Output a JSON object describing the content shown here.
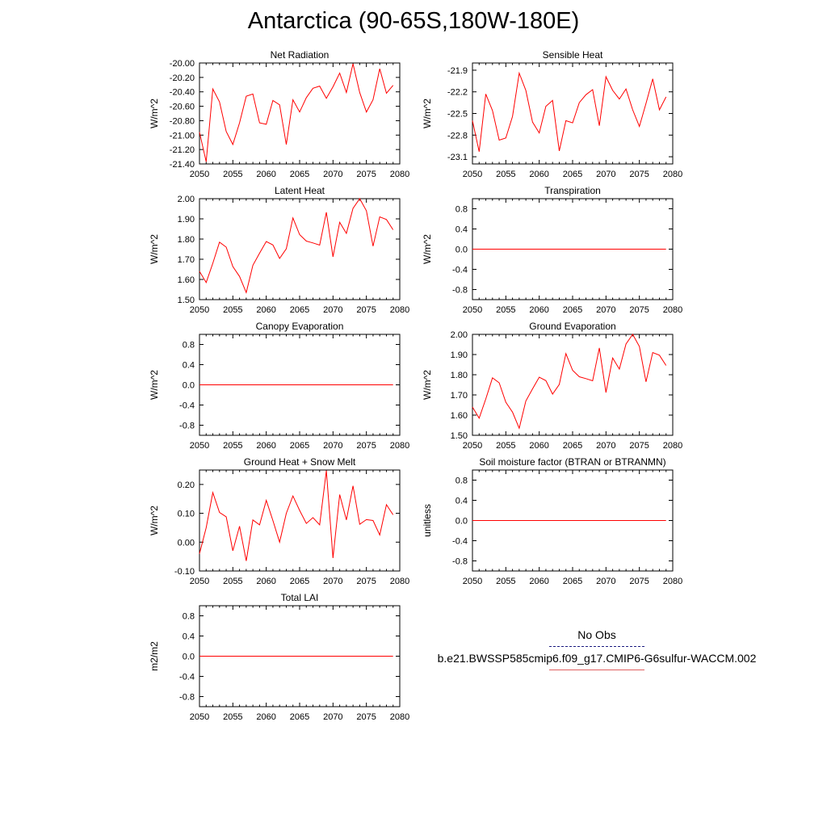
{
  "title": "Antarctica (90-65S,180W-180E)",
  "colors": {
    "model": "#ff0000",
    "obs": "#1a1a80",
    "axis": "#000000"
  },
  "legend": {
    "obs_label": "No Obs",
    "model_label": "b.e21.BWSSP585cmip6.f09_g17.CMIP6-G6sulfur-WACCM.002"
  },
  "chart_data": [
    {
      "type": "line",
      "title": "Net Radiation",
      "ylabel": "W/m^2",
      "xlim": [
        2050,
        2080
      ],
      "ylim": [
        -21.4,
        -20.0
      ],
      "xticks": [
        2050,
        2055,
        2060,
        2065,
        2070,
        2075,
        2080
      ],
      "yticks": [
        -21.4,
        -21.2,
        -21.0,
        -20.8,
        -20.6,
        -20.4,
        -20.2,
        -20.0
      ],
      "ytick_labels": [
        "-21.40",
        "-21.20",
        "-21.00",
        "-20.80",
        "-20.60",
        "-20.40",
        "-20.20",
        "-20.00"
      ],
      "x": [
        2050,
        2051,
        2052,
        2053,
        2054,
        2055,
        2056,
        2057,
        2058,
        2059,
        2060,
        2061,
        2062,
        2063,
        2064,
        2065,
        2066,
        2067,
        2068,
        2069,
        2070,
        2071,
        2072,
        2073,
        2074,
        2075,
        2076,
        2077,
        2078,
        2079
      ],
      "values": [
        -20.96,
        -21.37,
        -20.36,
        -20.54,
        -20.95,
        -21.13,
        -20.83,
        -20.46,
        -20.43,
        -20.83,
        -20.85,
        -20.52,
        -20.58,
        -21.13,
        -20.51,
        -20.68,
        -20.48,
        -20.35,
        -20.32,
        -20.49,
        -20.33,
        -20.14,
        -20.41,
        -20.01,
        -20.41,
        -20.68,
        -20.51,
        -20.08,
        -20.42,
        -20.31
      ]
    },
    {
      "type": "line",
      "title": "Sensible Heat",
      "ylabel": "W/m^2",
      "xlim": [
        2050,
        2080
      ],
      "ylim": [
        -23.2,
        -21.8
      ],
      "xticks": [
        2050,
        2055,
        2060,
        2065,
        2070,
        2075,
        2080
      ],
      "yticks": [
        -23.1,
        -22.8,
        -22.5,
        -22.2,
        -21.9
      ],
      "ytick_labels": [
        "-23.1",
        "-22.8",
        "-22.5",
        "-22.2",
        "-21.9"
      ],
      "x": [
        2050,
        2051,
        2052,
        2053,
        2054,
        2055,
        2056,
        2057,
        2058,
        2059,
        2060,
        2061,
        2062,
        2063,
        2064,
        2065,
        2066,
        2067,
        2068,
        2069,
        2070,
        2071,
        2072,
        2073,
        2074,
        2075,
        2076,
        2077,
        2078,
        2079
      ],
      "values": [
        -22.6,
        -23.03,
        -22.23,
        -22.46,
        -22.87,
        -22.84,
        -22.54,
        -21.94,
        -22.18,
        -22.62,
        -22.77,
        -22.4,
        -22.32,
        -23.02,
        -22.6,
        -22.63,
        -22.35,
        -22.24,
        -22.17,
        -22.67,
        -21.99,
        -22.18,
        -22.3,
        -22.16,
        -22.45,
        -22.68,
        -22.36,
        -22.02,
        -22.45,
        -22.27
      ]
    },
    {
      "type": "line",
      "title": "Latent Heat",
      "ylabel": "W/m^2",
      "xlim": [
        2050,
        2080
      ],
      "ylim": [
        1.5,
        2.0
      ],
      "xticks": [
        2050,
        2055,
        2060,
        2065,
        2070,
        2075,
        2080
      ],
      "yticks": [
        1.5,
        1.6,
        1.7,
        1.8,
        1.9,
        2.0
      ],
      "ytick_labels": [
        "1.50",
        "1.60",
        "1.70",
        "1.80",
        "1.90",
        "2.00"
      ],
      "x": [
        2050,
        2051,
        2052,
        2053,
        2054,
        2055,
        2056,
        2057,
        2058,
        2059,
        2060,
        2061,
        2062,
        2063,
        2064,
        2065,
        2066,
        2067,
        2068,
        2069,
        2070,
        2071,
        2072,
        2073,
        2074,
        2075,
        2076,
        2077,
        2078,
        2079
      ],
      "values": [
        1.64,
        1.585,
        1.68,
        1.785,
        1.76,
        1.664,
        1.615,
        1.535,
        1.67,
        1.73,
        1.788,
        1.771,
        1.704,
        1.752,
        1.905,
        1.822,
        1.79,
        1.781,
        1.77,
        1.933,
        1.712,
        1.883,
        1.828,
        1.952,
        2.0,
        1.94,
        1.765,
        1.91,
        1.897,
        1.846
      ]
    },
    {
      "type": "line",
      "title": "Transpiration",
      "ylabel": "W/m^2",
      "xlim": [
        2050,
        2080
      ],
      "ylim": [
        -1.0,
        1.0
      ],
      "xticks": [
        2050,
        2055,
        2060,
        2065,
        2070,
        2075,
        2080
      ],
      "yticks": [
        -0.8,
        -0.4,
        0.0,
        0.4,
        0.8
      ],
      "ytick_labels": [
        "-0.8",
        "-0.4",
        "0.0",
        "0.4",
        "0.8"
      ],
      "x": [
        2050,
        2079
      ],
      "values": [
        0.0,
        0.0
      ]
    },
    {
      "type": "line",
      "title": "Canopy Evaporation",
      "ylabel": "W/m^2",
      "xlim": [
        2050,
        2080
      ],
      "ylim": [
        -1.0,
        1.0
      ],
      "xticks": [
        2050,
        2055,
        2060,
        2065,
        2070,
        2075,
        2080
      ],
      "yticks": [
        -0.8,
        -0.4,
        0.0,
        0.4,
        0.8
      ],
      "ytick_labels": [
        "-0.8",
        "-0.4",
        "0.0",
        "0.4",
        "0.8"
      ],
      "x": [
        2050,
        2079
      ],
      "values": [
        0.0,
        0.0
      ]
    },
    {
      "type": "line",
      "title": "Ground Evaporation",
      "ylabel": "W/m^2",
      "xlim": [
        2050,
        2080
      ],
      "ylim": [
        1.5,
        2.0
      ],
      "xticks": [
        2050,
        2055,
        2060,
        2065,
        2070,
        2075,
        2080
      ],
      "yticks": [
        1.5,
        1.6,
        1.7,
        1.8,
        1.9,
        2.0
      ],
      "ytick_labels": [
        "1.50",
        "1.60",
        "1.70",
        "1.80",
        "1.90",
        "2.00"
      ],
      "x": [
        2050,
        2051,
        2052,
        2053,
        2054,
        2055,
        2056,
        2057,
        2058,
        2059,
        2060,
        2061,
        2062,
        2063,
        2064,
        2065,
        2066,
        2067,
        2068,
        2069,
        2070,
        2071,
        2072,
        2073,
        2074,
        2075,
        2076,
        2077,
        2078,
        2079
      ],
      "values": [
        1.64,
        1.585,
        1.68,
        1.785,
        1.76,
        1.664,
        1.615,
        1.535,
        1.67,
        1.73,
        1.788,
        1.771,
        1.704,
        1.752,
        1.905,
        1.822,
        1.79,
        1.781,
        1.77,
        1.933,
        1.712,
        1.883,
        1.828,
        1.952,
        2.0,
        1.94,
        1.765,
        1.91,
        1.897,
        1.846
      ]
    },
    {
      "type": "line",
      "title": "Ground Heat + Snow Melt",
      "ylabel": "W/m^2",
      "xlim": [
        2050,
        2080
      ],
      "ylim": [
        -0.1,
        0.25
      ],
      "xticks": [
        2050,
        2055,
        2060,
        2065,
        2070,
        2075,
        2080
      ],
      "yticks": [
        -0.1,
        0.0,
        0.1,
        0.2
      ],
      "ytick_labels": [
        "-0.10",
        "0.00",
        "0.10",
        "0.20"
      ],
      "x": [
        2050,
        2051,
        2052,
        2053,
        2054,
        2055,
        2056,
        2057,
        2058,
        2059,
        2060,
        2061,
        2062,
        2063,
        2064,
        2065,
        2066,
        2067,
        2068,
        2069,
        2070,
        2071,
        2072,
        2073,
        2074,
        2075,
        2076,
        2077,
        2078,
        2079
      ],
      "values": [
        -0.04,
        0.05,
        0.172,
        0.103,
        0.088,
        -0.03,
        0.055,
        -0.065,
        0.077,
        0.06,
        0.145,
        0.075,
        0.0,
        0.1,
        0.16,
        0.11,
        0.065,
        0.085,
        0.06,
        0.248,
        -0.055,
        0.165,
        0.077,
        0.195,
        0.062,
        0.078,
        0.075,
        0.025,
        0.13,
        0.095
      ]
    },
    {
      "type": "line",
      "title": "Soil moisture factor (BTRAN or BTRANMN)",
      "ylabel": "unitless",
      "xlim": [
        2050,
        2080
      ],
      "ylim": [
        -1.0,
        1.0
      ],
      "xticks": [
        2050,
        2055,
        2060,
        2065,
        2070,
        2075,
        2080
      ],
      "yticks": [
        -0.8,
        -0.4,
        0.0,
        0.4,
        0.8
      ],
      "ytick_labels": [
        "-0.8",
        "-0.4",
        "0.0",
        "0.4",
        "0.8"
      ],
      "x": [
        2050,
        2079
      ],
      "values": [
        0.0,
        0.0
      ]
    },
    {
      "type": "line",
      "title": "Total LAI",
      "ylabel": "m2/m2",
      "xlim": [
        2050,
        2080
      ],
      "ylim": [
        -1.0,
        1.0
      ],
      "xticks": [
        2050,
        2055,
        2060,
        2065,
        2070,
        2075,
        2080
      ],
      "yticks": [
        -0.8,
        -0.4,
        0.0,
        0.4,
        0.8
      ],
      "ytick_labels": [
        "-0.8",
        "-0.4",
        "0.0",
        "0.4",
        "0.8"
      ],
      "x": [
        2050,
        2079
      ],
      "values": [
        0.0,
        0.0
      ]
    }
  ]
}
